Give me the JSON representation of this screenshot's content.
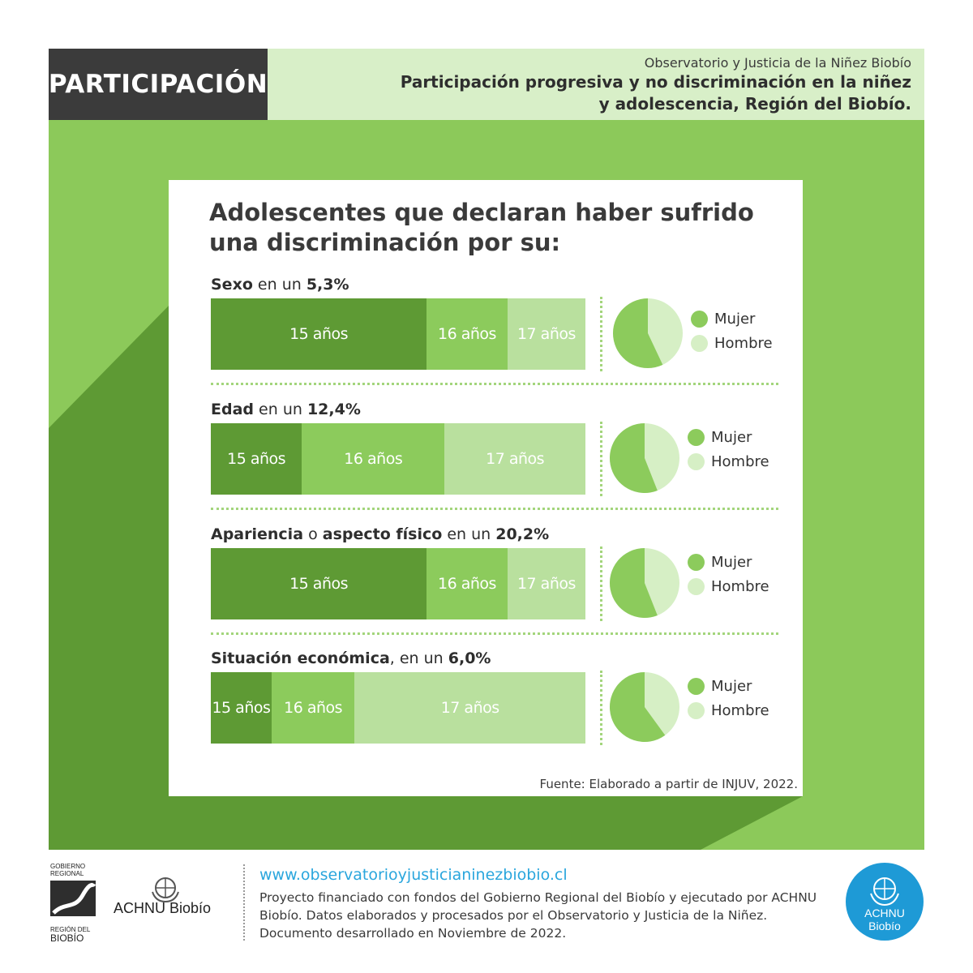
{
  "header": {
    "tag": "PARTICIPACIÓN",
    "org": "Observatorio y Justicia de la Niñez Biobío",
    "title_line1": "Participación progresiva y no discriminación en la niñez",
    "title_line2": "y adolescencia, Región del Biobío."
  },
  "card": {
    "title_line1": "Adolescentes que declaran haber sufrido",
    "title_line2": "una discriminación por su:",
    "source": "Fuente: Elaborado a partir de INJUV, 2022."
  },
  "colors": {
    "age15": "#5e9a34",
    "age16": "#8ccb5c",
    "age17": "#b9e09e",
    "mujer": "#8ccb5c",
    "hombre": "#d6efc5"
  },
  "chart_data": {
    "type": "bar",
    "title": "Adolescentes que declaran haber sufrido una discriminación por su:",
    "legend": [
      {
        "key": "mujer",
        "label": "Mujer"
      },
      {
        "key": "hombre",
        "label": "Hombre"
      }
    ],
    "sections": [
      {
        "label_parts": [
          {
            "text": "Sexo",
            "bold": true
          },
          {
            "text": " en un ",
            "bold": false
          },
          {
            "text": "5,3%",
            "bold": true
          }
        ],
        "segments": [
          {
            "label": "15 años",
            "value": 57.6
          },
          {
            "label": "16 años",
            "value": 21.6
          },
          {
            "label": "17 años",
            "value": 20.8
          }
        ],
        "pie": {
          "mujer": 57,
          "hombre": 43
        }
      },
      {
        "label_parts": [
          {
            "text": "Edad",
            "bold": true
          },
          {
            "text": " en un ",
            "bold": false
          },
          {
            "text": "12,4%",
            "bold": true
          }
        ],
        "segments": [
          {
            "label": "15 años",
            "value": 24.3
          },
          {
            "label": "16 años",
            "value": 38.1
          },
          {
            "label": "17 años",
            "value": 37.6
          }
        ],
        "pie": {
          "mujer": 56,
          "hombre": 44
        }
      },
      {
        "label_parts": [
          {
            "text": "Apariencia",
            "bold": true
          },
          {
            "text": " o ",
            "bold": false
          },
          {
            "text": "aspecto físico",
            "bold": true
          },
          {
            "text": " en un ",
            "bold": false
          },
          {
            "text": "20,2%",
            "bold": true
          }
        ],
        "segments": [
          {
            "label": "15 años",
            "value": 57.6
          },
          {
            "label": "16 años",
            "value": 21.6
          },
          {
            "label": "17 años",
            "value": 20.8
          }
        ],
        "pie": {
          "mujer": 56,
          "hombre": 44
        }
      },
      {
        "label_parts": [
          {
            "text": "Situación económica",
            "bold": true
          },
          {
            "text": ", en un ",
            "bold": false
          },
          {
            "text": "6,0%",
            "bold": true
          }
        ],
        "segments": [
          {
            "label": "15 años",
            "value": 16.2
          },
          {
            "label": "16 años",
            "value": 22.2
          },
          {
            "label": "17 años",
            "value": 61.6
          }
        ],
        "pie": {
          "mujer": 60,
          "hombre": 40
        }
      }
    ]
  },
  "footer": {
    "logo1_line1": "GOBIERNO",
    "logo1_line2": "REGIONAL",
    "logo1_line3": "REGIÓN DEL",
    "logo1_line4": "BIOBÍO",
    "logo2_text": "ACHNU Biobío",
    "url": "www.observatorioyjusticianinezbiobio.cl",
    "text": "Proyecto financiado con fondos del Gobierno Regional del Biobío y ejecutado por ACHNU Biobío. Datos elaborados y procesados por el Observatorio y Justicia de la Niñez. Documento desarrollado en Noviembre de 2022.",
    "badge_line1": "ACHNU",
    "badge_line2": "Biobío"
  }
}
